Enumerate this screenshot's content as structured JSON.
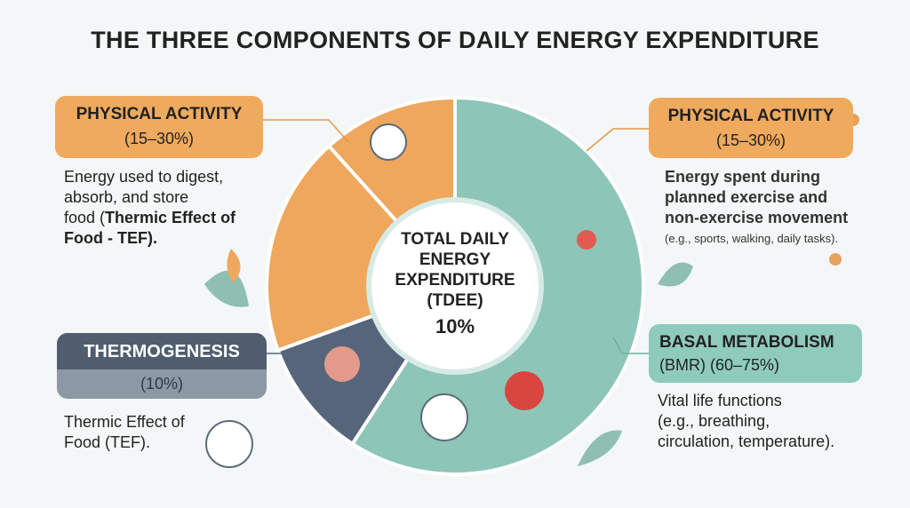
{
  "title": "THE THREE COMPONENTS OF DAILY ENERGY EXPENDITURE",
  "center": {
    "lines": [
      "TOTAL DAILY",
      "ENERGY",
      "EXPENDITURE",
      "(TDEE)"
    ],
    "value": "10%"
  },
  "left_top": {
    "heading": "PHYSICAL ACTIVITY",
    "range": "(15–30%)",
    "lines": [
      "Energy used to digest,",
      "absorb, and store",
      "food (",
      "Thermic Effect of",
      "Food - TEF)."
    ]
  },
  "left_bottom": {
    "heading": "THERMOGENESIS",
    "range": "(10%)",
    "lines": [
      "Thermic Effect of",
      "Food (TEF)."
    ]
  },
  "right_top": {
    "heading": "PHYSICAL ACTIVITY",
    "range": "(15–30%)",
    "lines": [
      "Energy spent during",
      "planned exercise and",
      "non-exercise movement"
    ],
    "note": "(e.g., sports, walking, daily tasks)."
  },
  "right_bottom": {
    "heading": "BASAL METABOLISM",
    "range": "(BMR) (60–75%)",
    "lines": [
      "Vital life functions",
      "(e.g., breathing,",
      "circulation, temperature)."
    ]
  }
}
